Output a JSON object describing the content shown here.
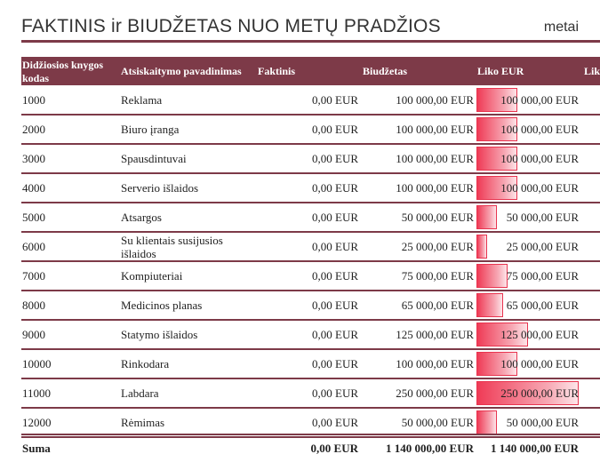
{
  "report": {
    "title": "FAKTINIS ir BIUDŽETAS NUO METŲ PRADŽIOS",
    "subtitle": "metai"
  },
  "columns": {
    "code": "Didžiosios knygos kodas",
    "name": "Atsiskaitymo pavadinimas",
    "actual": "Faktinis",
    "budget": "Biudžetas",
    "remaining": "Liko EUR",
    "remaining_pct": "Lik"
  },
  "rows": [
    {
      "code": "1000",
      "name": "Reklama",
      "actual": "0,00 EUR",
      "budget": "100 000,00 EUR",
      "remaining": "100 000,00 EUR",
      "remaining_value": 100000
    },
    {
      "code": "2000",
      "name": "Biuro įranga",
      "actual": "0,00 EUR",
      "budget": "100 000,00 EUR",
      "remaining": "100 000,00 EUR",
      "remaining_value": 100000
    },
    {
      "code": "3000",
      "name": "Spausdintuvai",
      "actual": "0,00 EUR",
      "budget": "100 000,00 EUR",
      "remaining": "100 000,00 EUR",
      "remaining_value": 100000
    },
    {
      "code": "4000",
      "name": "Serverio išlaidos",
      "actual": "0,00 EUR",
      "budget": "100 000,00 EUR",
      "remaining": "100 000,00 EUR",
      "remaining_value": 100000
    },
    {
      "code": "5000",
      "name": "Atsargos",
      "actual": "0,00 EUR",
      "budget": "50 000,00 EUR",
      "remaining": "50 000,00 EUR",
      "remaining_value": 50000
    },
    {
      "code": "6000",
      "name": "Su klientais susijusios išlaidos",
      "actual": "0,00 EUR",
      "budget": "25 000,00 EUR",
      "remaining": "25 000,00 EUR",
      "remaining_value": 25000
    },
    {
      "code": "7000",
      "name": "Kompiuteriai",
      "actual": "0,00 EUR",
      "budget": "75 000,00 EUR",
      "remaining": "75 000,00 EUR",
      "remaining_value": 75000
    },
    {
      "code": "8000",
      "name": "Medicinos planas",
      "actual": "0,00 EUR",
      "budget": "65 000,00 EUR",
      "remaining": "65 000,00 EUR",
      "remaining_value": 65000
    },
    {
      "code": "9000",
      "name": "Statymo išlaidos",
      "actual": "0,00 EUR",
      "budget": "125 000,00 EUR",
      "remaining": "125 000,00 EUR",
      "remaining_value": 125000
    },
    {
      "code": "10000",
      "name": "Rinkodara",
      "actual": "0,00 EUR",
      "budget": "100 000,00 EUR",
      "remaining": "100 000,00 EUR",
      "remaining_value": 100000
    },
    {
      "code": "11000",
      "name": "Labdara",
      "actual": "0,00 EUR",
      "budget": "250 000,00 EUR",
      "remaining": "250 000,00 EUR",
      "remaining_value": 250000
    },
    {
      "code": "12000",
      "name": "Rėmimas",
      "actual": "0,00 EUR",
      "budget": "50 000,00 EUR",
      "remaining": "50 000,00 EUR",
      "remaining_value": 50000
    }
  ],
  "remaining_bar_max": 250000,
  "total": {
    "label": "Suma",
    "actual": "0,00 EUR",
    "budget": "1 140 000,00 EUR",
    "remaining": "1 140 000,00 EUR"
  },
  "colors": {
    "accent": "#7d3a48",
    "bar": "#ef3b56"
  }
}
